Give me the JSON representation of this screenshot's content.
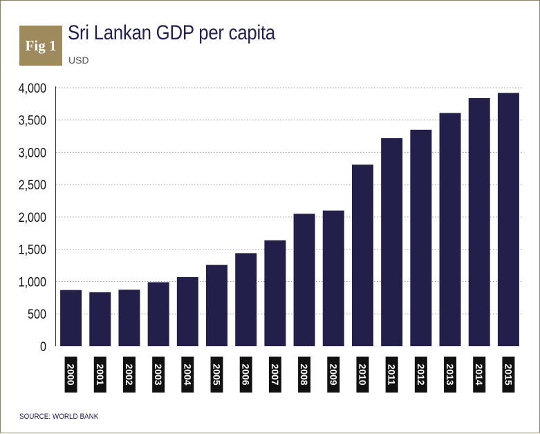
{
  "figure": {
    "badge": "Fig 1",
    "title": "Sri Lankan GDP per capita",
    "unit": "USD",
    "source": "SOURCE: WORLD BANK"
  },
  "colors": {
    "bar": "#221f4a",
    "badge": "#9e8a5c",
    "grid": "#9a9a9a",
    "year_label_bg": "#111111",
    "year_label_text": "#ffffff"
  },
  "chart_data": {
    "type": "bar",
    "title": "Sri Lankan GDP per capita",
    "subtitle": "USD",
    "xlabel": "",
    "ylabel": "",
    "categories": [
      "2000",
      "2001",
      "2002",
      "2003",
      "2004",
      "2005",
      "2006",
      "2007",
      "2008",
      "2009",
      "2010",
      "2011",
      "2012",
      "2013",
      "2014",
      "2015"
    ],
    "values": [
      870,
      835,
      875,
      990,
      1070,
      1260,
      1440,
      1640,
      2050,
      2100,
      2810,
      3220,
      3350,
      3610,
      3840,
      3920
    ],
    "ylim": [
      0,
      4000
    ],
    "yticks": [
      0,
      500,
      1000,
      1500,
      2000,
      2500,
      3000,
      3500,
      4000
    ],
    "ytick_labels": [
      "0",
      "500",
      "1,000",
      "1,500",
      "2,000",
      "2,500",
      "3,000",
      "3,500",
      "4,000"
    ],
    "grid": true,
    "grid_style": "dotted horizontal",
    "legend": "none",
    "source": "SOURCE: WORLD BANK"
  }
}
